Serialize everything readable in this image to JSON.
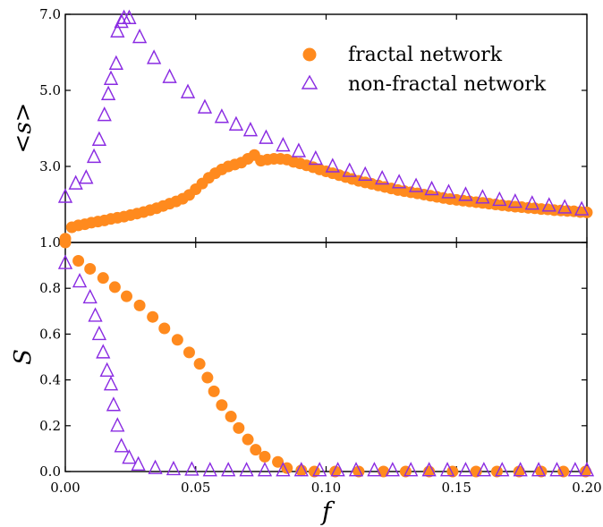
{
  "chart_data": [
    {
      "type": "scatter",
      "ylabel": "<s>",
      "xlim": [
        0.0,
        0.2
      ],
      "ylim": [
        1.0,
        7.0
      ],
      "y_ticks": [
        {
          "value": 1.0,
          "label": "1.0"
        },
        {
          "value": 3.0,
          "label": "3.0"
        },
        {
          "value": 5.0,
          "label": "5.0"
        },
        {
          "value": 7.0,
          "label": "7.0"
        }
      ],
      "legend_position": "top-right",
      "series": [
        {
          "name": "fractal network",
          "marker": "filled-circle",
          "color": "#ff8a1e",
          "points": [
            [
              0.0,
              1.1
            ],
            [
              0.0025,
              1.4
            ],
            [
              0.005,
              1.45
            ],
            [
              0.0075,
              1.48
            ],
            [
              0.01,
              1.52
            ],
            [
              0.0125,
              1.55
            ],
            [
              0.015,
              1.58
            ],
            [
              0.0175,
              1.62
            ],
            [
              0.02,
              1.65
            ],
            [
              0.0225,
              1.68
            ],
            [
              0.025,
              1.72
            ],
            [
              0.0275,
              1.76
            ],
            [
              0.03,
              1.8
            ],
            [
              0.0325,
              1.85
            ],
            [
              0.035,
              1.9
            ],
            [
              0.0375,
              1.96
            ],
            [
              0.04,
              2.02
            ],
            [
              0.0425,
              2.08
            ],
            [
              0.045,
              2.15
            ],
            [
              0.0475,
              2.25
            ],
            [
              0.05,
              2.4
            ],
            [
              0.0525,
              2.55
            ],
            [
              0.055,
              2.7
            ],
            [
              0.0575,
              2.82
            ],
            [
              0.06,
              2.92
            ],
            [
              0.0625,
              3.0
            ],
            [
              0.065,
              3.05
            ],
            [
              0.0675,
              3.1
            ],
            [
              0.07,
              3.2
            ],
            [
              0.0725,
              3.3
            ],
            [
              0.075,
              3.15
            ],
            [
              0.0775,
              3.18
            ],
            [
              0.08,
              3.2
            ],
            [
              0.0825,
              3.2
            ],
            [
              0.085,
              3.18
            ],
            [
              0.0875,
              3.12
            ],
            [
              0.09,
              3.08
            ],
            [
              0.0925,
              3.03
            ],
            [
              0.095,
              2.98
            ],
            [
              0.0975,
              2.92
            ],
            [
              0.1,
              2.87
            ],
            [
              0.1025,
              2.82
            ],
            [
              0.105,
              2.77
            ],
            [
              0.1075,
              2.72
            ],
            [
              0.11,
              2.67
            ],
            [
              0.1125,
              2.62
            ],
            [
              0.115,
              2.58
            ],
            [
              0.1175,
              2.54
            ],
            [
              0.12,
              2.5
            ],
            [
              0.1225,
              2.46
            ],
            [
              0.125,
              2.42
            ],
            [
              0.1275,
              2.38
            ],
            [
              0.13,
              2.35
            ],
            [
              0.1325,
              2.32
            ],
            [
              0.135,
              2.29
            ],
            [
              0.1375,
              2.26
            ],
            [
              0.14,
              2.23
            ],
            [
              0.1425,
              2.2
            ],
            [
              0.145,
              2.17
            ],
            [
              0.1475,
              2.14
            ],
            [
              0.15,
              2.12
            ],
            [
              0.1525,
              2.1
            ],
            [
              0.155,
              2.08
            ],
            [
              0.1575,
              2.06
            ],
            [
              0.16,
              2.04
            ],
            [
              0.1625,
              2.02
            ],
            [
              0.165,
              2.0
            ],
            [
              0.1675,
              1.98
            ],
            [
              0.17,
              1.96
            ],
            [
              0.1725,
              1.94
            ],
            [
              0.175,
              1.93
            ],
            [
              0.1775,
              1.91
            ],
            [
              0.18,
              1.9
            ],
            [
              0.1825,
              1.88
            ],
            [
              0.185,
              1.87
            ],
            [
              0.1875,
              1.85
            ],
            [
              0.19,
              1.84
            ],
            [
              0.1925,
              1.83
            ],
            [
              0.195,
              1.82
            ],
            [
              0.1975,
              1.8
            ],
            [
              0.2,
              1.79
            ]
          ]
        },
        {
          "name": "non-fractal network",
          "marker": "open-triangle",
          "color": "#8a2be2",
          "points": [
            [
              0.0,
              2.2
            ],
            [
              0.004,
              2.55
            ],
            [
              0.008,
              2.7
            ],
            [
              0.011,
              3.25
            ],
            [
              0.013,
              3.7
            ],
            [
              0.015,
              4.35
            ],
            [
              0.0165,
              4.9
            ],
            [
              0.0175,
              5.3
            ],
            [
              0.0195,
              5.7
            ],
            [
              0.02,
              6.55
            ],
            [
              0.0215,
              6.8
            ],
            [
              0.0225,
              6.9
            ],
            [
              0.0245,
              6.9
            ],
            [
              0.0285,
              6.4
            ],
            [
              0.034,
              5.85
            ],
            [
              0.04,
              5.35
            ],
            [
              0.047,
              4.95
            ],
            [
              0.0535,
              4.55
            ],
            [
              0.06,
              4.3
            ],
            [
              0.0655,
              4.1
            ],
            [
              0.071,
              3.95
            ],
            [
              0.077,
              3.75
            ],
            [
              0.0835,
              3.55
            ],
            [
              0.0895,
              3.4
            ],
            [
              0.096,
              3.2
            ],
            [
              0.1025,
              3.0
            ],
            [
              0.109,
              2.88
            ],
            [
              0.115,
              2.78
            ],
            [
              0.1215,
              2.68
            ],
            [
              0.128,
              2.58
            ],
            [
              0.1345,
              2.48
            ],
            [
              0.1405,
              2.4
            ],
            [
              0.147,
              2.32
            ],
            [
              0.1535,
              2.25
            ],
            [
              0.16,
              2.18
            ],
            [
              0.1665,
              2.12
            ],
            [
              0.1725,
              2.07
            ],
            [
              0.179,
              2.02
            ],
            [
              0.1855,
              1.97
            ],
            [
              0.1915,
              1.92
            ],
            [
              0.198,
              1.87
            ]
          ]
        }
      ]
    },
    {
      "type": "scatter",
      "xlabel": "f",
      "ylabel": "S",
      "xlim": [
        0.0,
        0.2
      ],
      "ylim": [
        0.0,
        1.0
      ],
      "x_ticks": [
        {
          "value": 0.0,
          "label": "0.00"
        },
        {
          "value": 0.05,
          "label": "0.05"
        },
        {
          "value": 0.1,
          "label": "0.10"
        },
        {
          "value": 0.15,
          "label": "0.15"
        },
        {
          "value": 0.2,
          "label": "0.20"
        }
      ],
      "y_ticks": [
        {
          "value": 0.0,
          "label": "0.0"
        },
        {
          "value": 0.2,
          "label": "0.2"
        },
        {
          "value": 0.4,
          "label": "0.4"
        },
        {
          "value": 0.6,
          "label": "0.6"
        },
        {
          "value": 0.8,
          "label": "0.8"
        }
      ],
      "series": [
        {
          "name": "fractal network",
          "marker": "filled-circle",
          "color": "#ff8a1e",
          "points": [
            [
              0.0,
              1.0
            ],
            [
              0.005,
              0.92
            ],
            [
              0.0095,
              0.885
            ],
            [
              0.0145,
              0.845
            ],
            [
              0.019,
              0.805
            ],
            [
              0.0235,
              0.765
            ],
            [
              0.0285,
              0.725
            ],
            [
              0.0335,
              0.675
            ],
            [
              0.038,
              0.625
            ],
            [
              0.043,
              0.575
            ],
            [
              0.0475,
              0.52
            ],
            [
              0.0515,
              0.47
            ],
            [
              0.0545,
              0.41
            ],
            [
              0.057,
              0.35
            ],
            [
              0.06,
              0.29
            ],
            [
              0.0635,
              0.24
            ],
            [
              0.0665,
              0.19
            ],
            [
              0.07,
              0.14
            ],
            [
              0.073,
              0.095
            ],
            [
              0.0765,
              0.065
            ],
            [
              0.0815,
              0.042
            ],
            [
              0.085,
              0.015
            ],
            [
              0.0905,
              0.005
            ],
            [
              0.0955,
              0.0
            ],
            [
              0.1035,
              0.0
            ],
            [
              0.1125,
              0.0
            ],
            [
              0.122,
              0.0
            ],
            [
              0.1305,
              0.0
            ],
            [
              0.1395,
              0.0
            ],
            [
              0.1485,
              0.0
            ],
            [
              0.1575,
              0.0
            ],
            [
              0.1655,
              0.0
            ],
            [
              0.174,
              0.0
            ],
            [
              0.1825,
              0.0
            ],
            [
              0.191,
              0.0
            ],
            [
              0.1995,
              0.0
            ]
          ]
        },
        {
          "name": "non-fractal network",
          "marker": "open-triangle",
          "color": "#8a2be2",
          "points": [
            [
              0.0,
              0.91
            ],
            [
              0.0055,
              0.83
            ],
            [
              0.0095,
              0.76
            ],
            [
              0.0115,
              0.68
            ],
            [
              0.013,
              0.6
            ],
            [
              0.0145,
              0.52
            ],
            [
              0.016,
              0.44
            ],
            [
              0.0175,
              0.38
            ],
            [
              0.0185,
              0.29
            ],
            [
              0.02,
              0.2
            ],
            [
              0.0215,
              0.11
            ],
            [
              0.0245,
              0.06
            ],
            [
              0.028,
              0.03
            ],
            [
              0.0345,
              0.015
            ],
            [
              0.0415,
              0.01
            ],
            [
              0.0485,
              0.008
            ],
            [
              0.0555,
              0.005
            ],
            [
              0.0625,
              0.005
            ],
            [
              0.0695,
              0.005
            ],
            [
              0.0765,
              0.005
            ],
            [
              0.0835,
              0.005
            ],
            [
              0.0905,
              0.005
            ],
            [
              0.0975,
              0.005
            ],
            [
              0.1045,
              0.005
            ],
            [
              0.1115,
              0.005
            ],
            [
              0.1185,
              0.005
            ],
            [
              0.1255,
              0.005
            ],
            [
              0.1325,
              0.005
            ],
            [
              0.1395,
              0.005
            ],
            [
              0.1465,
              0.005
            ],
            [
              0.1535,
              0.005
            ],
            [
              0.1605,
              0.005
            ],
            [
              0.1675,
              0.005
            ],
            [
              0.1745,
              0.005
            ],
            [
              0.1815,
              0.005
            ],
            [
              0.1885,
              0.005
            ],
            [
              0.1955,
              0.005
            ],
            [
              0.2,
              0.005
            ]
          ]
        }
      ]
    }
  ]
}
